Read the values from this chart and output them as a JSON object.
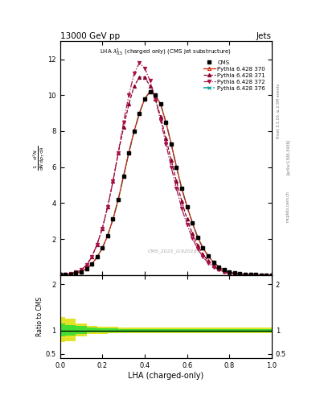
{
  "title_top": "13000 GeV pp",
  "title_right": "Jets",
  "plot_title": "LHA $\\lambda^{1}_{0.5}$ (charged only) (CMS jet substructure)",
  "xlabel": "LHA (charged-only)",
  "ylabel_ratio": "Ratio to CMS",
  "watermark": "CMS_2021_I1920187",
  "rivet_text": "Rivet 3.1.10, ≥ 2.5M events",
  "arxiv_text": "[arXiv:1306.3436]",
  "mcplots_text": "mcplots.cern.ch",
  "xdata": [
    0.0,
    0.025,
    0.05,
    0.075,
    0.1,
    0.125,
    0.15,
    0.175,
    0.2,
    0.225,
    0.25,
    0.275,
    0.3,
    0.325,
    0.35,
    0.375,
    0.4,
    0.425,
    0.45,
    0.475,
    0.5,
    0.525,
    0.55,
    0.575,
    0.6,
    0.625,
    0.65,
    0.675,
    0.7,
    0.725,
    0.75,
    0.775,
    0.8,
    0.825,
    0.85,
    0.875,
    0.9,
    0.925,
    0.95,
    0.975,
    1.0
  ],
  "cms_y": [
    0.01,
    0.02,
    0.05,
    0.1,
    0.18,
    0.35,
    0.6,
    1.0,
    1.5,
    2.2,
    3.1,
    4.2,
    5.5,
    6.8,
    8.0,
    9.0,
    9.8,
    10.2,
    10.0,
    9.5,
    8.5,
    7.3,
    6.0,
    4.8,
    3.8,
    2.9,
    2.1,
    1.5,
    1.05,
    0.7,
    0.45,
    0.28,
    0.17,
    0.1,
    0.06,
    0.035,
    0.018,
    0.01,
    0.005,
    0.002,
    0.001
  ],
  "py370_y": [
    0.01,
    0.02,
    0.05,
    0.1,
    0.18,
    0.35,
    0.6,
    1.0,
    1.5,
    2.2,
    3.1,
    4.2,
    5.5,
    6.8,
    8.0,
    9.0,
    9.8,
    10.2,
    10.0,
    9.5,
    8.5,
    7.3,
    6.0,
    4.8,
    3.8,
    2.9,
    2.1,
    1.5,
    1.05,
    0.7,
    0.45,
    0.28,
    0.17,
    0.1,
    0.06,
    0.035,
    0.018,
    0.01,
    0.005,
    0.002,
    0.001
  ],
  "py371_y": [
    0.01,
    0.025,
    0.07,
    0.15,
    0.28,
    0.55,
    1.0,
    1.7,
    2.6,
    3.8,
    5.2,
    6.8,
    8.2,
    9.5,
    10.5,
    11.0,
    11.0,
    10.5,
    9.8,
    8.8,
    7.6,
    6.4,
    5.2,
    4.1,
    3.1,
    2.3,
    1.65,
    1.15,
    0.78,
    0.52,
    0.33,
    0.2,
    0.12,
    0.07,
    0.04,
    0.022,
    0.012,
    0.006,
    0.003,
    0.001,
    0.001
  ],
  "py372_y": [
    0.01,
    0.025,
    0.07,
    0.15,
    0.28,
    0.55,
    1.0,
    1.7,
    2.6,
    3.8,
    5.2,
    6.8,
    8.5,
    10.0,
    11.2,
    11.8,
    11.5,
    10.8,
    9.8,
    8.6,
    7.3,
    6.0,
    4.8,
    3.7,
    2.8,
    2.05,
    1.45,
    1.0,
    0.67,
    0.44,
    0.28,
    0.17,
    0.1,
    0.06,
    0.034,
    0.019,
    0.01,
    0.005,
    0.002,
    0.001,
    0.0005
  ],
  "py376_y": [
    0.01,
    0.02,
    0.05,
    0.1,
    0.18,
    0.35,
    0.6,
    1.0,
    1.5,
    2.2,
    3.1,
    4.2,
    5.5,
    6.8,
    8.0,
    9.0,
    9.8,
    10.2,
    10.0,
    9.5,
    8.5,
    7.3,
    6.0,
    4.8,
    3.8,
    2.9,
    2.1,
    1.5,
    1.05,
    0.7,
    0.45,
    0.28,
    0.17,
    0.1,
    0.06,
    0.035,
    0.018,
    0.01,
    0.005,
    0.002,
    0.001
  ],
  "ratio_x": [
    0.0,
    0.05,
    0.1,
    0.15,
    0.2,
    0.25,
    0.3,
    0.35,
    0.4,
    0.45,
    0.5,
    0.55,
    0.6,
    0.65,
    0.7,
    0.75,
    0.8,
    0.85,
    0.9,
    0.95,
    1.0
  ],
  "ratio_yellow_lo": [
    0.75,
    0.78,
    0.88,
    0.92,
    0.93,
    0.94,
    0.95,
    0.95,
    0.95,
    0.95,
    0.95,
    0.95,
    0.95,
    0.95,
    0.95,
    0.95,
    0.95,
    0.95,
    0.95,
    0.95,
    0.95
  ],
  "ratio_yellow_hi": [
    1.3,
    1.25,
    1.15,
    1.1,
    1.09,
    1.08,
    1.07,
    1.06,
    1.06,
    1.06,
    1.06,
    1.06,
    1.06,
    1.06,
    1.06,
    1.06,
    1.06,
    1.06,
    1.06,
    1.06,
    1.06
  ],
  "ratio_green_lo": [
    0.88,
    0.9,
    0.93,
    0.96,
    0.97,
    0.97,
    0.97,
    0.97,
    0.97,
    0.97,
    0.97,
    0.97,
    0.97,
    0.97,
    0.97,
    0.97,
    0.97,
    0.97,
    0.97,
    0.97,
    0.97
  ],
  "ratio_green_hi": [
    1.15,
    1.12,
    1.1,
    1.06,
    1.05,
    1.05,
    1.04,
    1.04,
    1.04,
    1.04,
    1.04,
    1.04,
    1.04,
    1.04,
    1.04,
    1.04,
    1.04,
    1.04,
    1.04,
    1.04,
    1.04
  ],
  "color_cms": "#000000",
  "color_py370": "#cc2200",
  "color_py371": "#880033",
  "color_py372": "#aa1144",
  "color_py376": "#009999",
  "color_green_band": "#33dd33",
  "color_yellow_band": "#dddd00",
  "ylim_main_lo": 0.0,
  "ylim_main_hi": 13.0,
  "yticks_main": [
    2,
    4,
    6,
    8,
    10,
    12
  ],
  "ylim_ratio_lo": 0.4,
  "ylim_ratio_hi": 2.2,
  "yticks_ratio": [
    0.5,
    1.0,
    2.0
  ],
  "yticklabels_ratio": [
    "0.5",
    "1",
    "2"
  ],
  "background_color": "#ffffff"
}
